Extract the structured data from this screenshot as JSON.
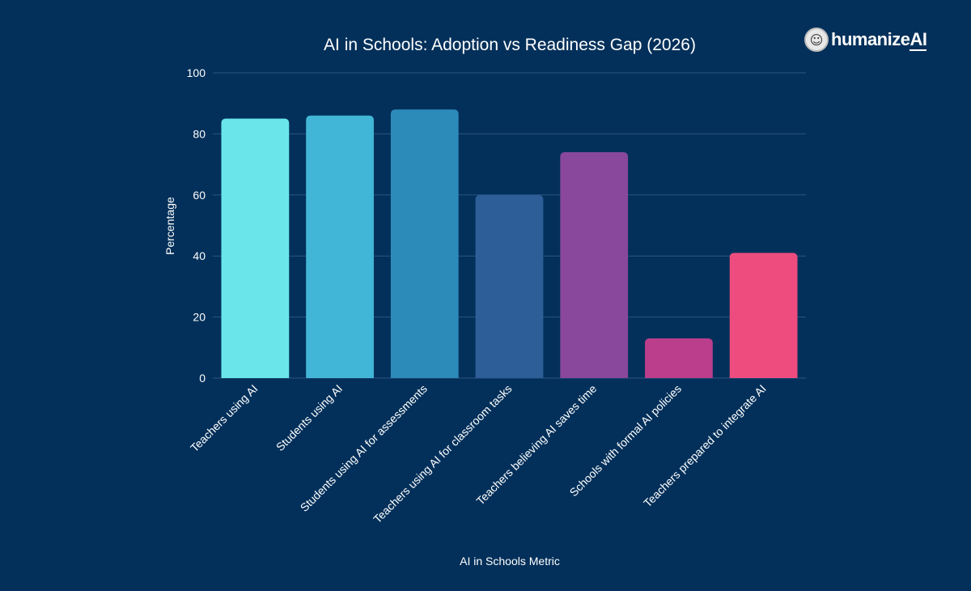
{
  "logo": {
    "icon": "brain-head-icon",
    "text_main": "humanize",
    "text_accent": "AI"
  },
  "chart_data": {
    "type": "bar",
    "title": "AI in Schools: Adoption vs Readiness Gap (2026)",
    "xlabel": "AI in Schools Metric",
    "ylabel": "Percentage",
    "ylim": [
      0,
      100
    ],
    "yticks": [
      0,
      20,
      40,
      60,
      80,
      100
    ],
    "grid": true,
    "categories": [
      "Teachers using AI",
      "Students using AI",
      "Students using AI for assessments",
      "Teachers using AI for classroom tasks",
      "Teachers believing AI saves time",
      "Schools with formal AI policies",
      "Teachers prepared to integrate AI"
    ],
    "values": [
      85,
      86,
      88,
      60,
      74,
      13,
      41
    ],
    "colors": [
      "#6ae6ea",
      "#42b6d6",
      "#2d8bba",
      "#2e5e98",
      "#89489c",
      "#bb3e8c",
      "#ee4c7e"
    ]
  }
}
